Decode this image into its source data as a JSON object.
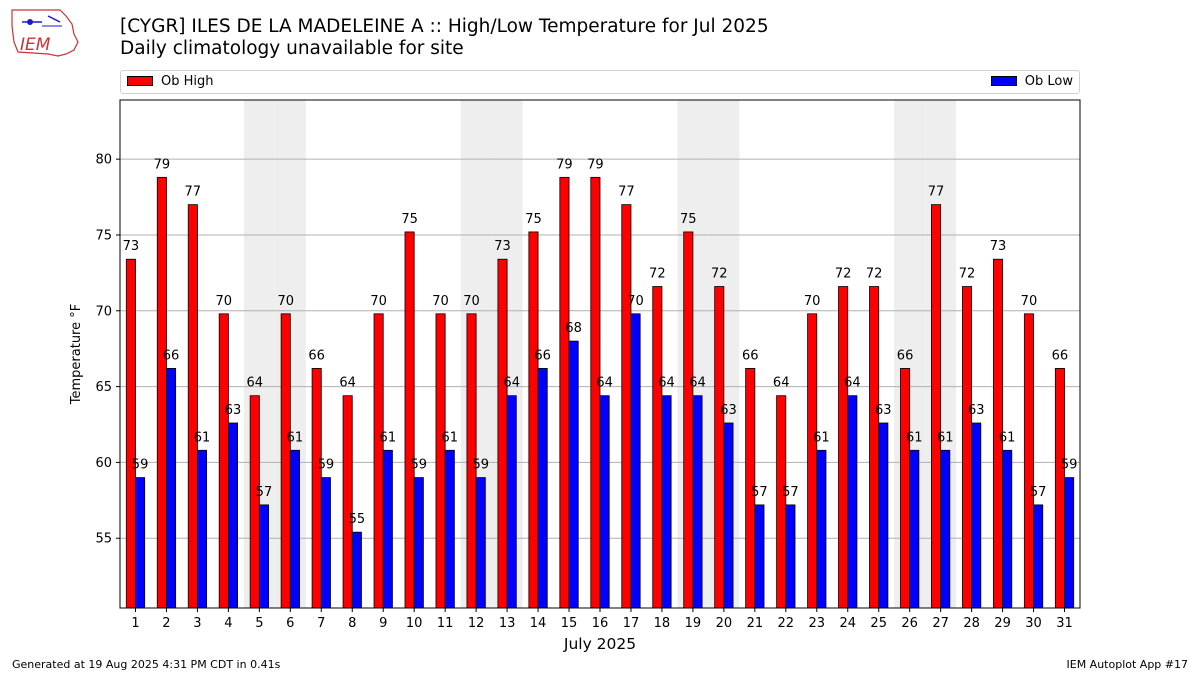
{
  "header": {
    "title": "[CYGR] ILES DE LA MADELEINE A :: High/Low Temperature for Jul 2025",
    "subtitle": "Daily climatology unavailable for site"
  },
  "logo": {
    "text": "IEM",
    "icon": "iem-logo-icon"
  },
  "footer": {
    "generated": "Generated at 19 Aug 2025 4:31 PM CDT in 0.41s",
    "app": "IEM Autoplot App #17"
  },
  "colors": {
    "high": "#ff0000",
    "low": "#0000ff",
    "weekend_band": "#eeeeee",
    "grid": "#b0b0b0"
  },
  "chart_data": {
    "type": "bar",
    "xlabel": "July 2025",
    "ylabel": "Temperature °F",
    "ylim": [
      50.4,
      83.9
    ],
    "yticks": [
      55,
      60,
      65,
      70,
      75,
      80
    ],
    "grid": true,
    "legend_placement": "top",
    "categories": [
      "1",
      "2",
      "3",
      "4",
      "5",
      "6",
      "7",
      "8",
      "9",
      "10",
      "11",
      "12",
      "13",
      "14",
      "15",
      "16",
      "17",
      "18",
      "19",
      "20",
      "21",
      "22",
      "23",
      "24",
      "25",
      "26",
      "27",
      "28",
      "29",
      "30",
      "31"
    ],
    "shaded_days": [
      5,
      6,
      12,
      13,
      19,
      20,
      26,
      27
    ],
    "series": [
      {
        "name": "Ob High",
        "values": [
          73.4,
          78.8,
          77.0,
          69.8,
          64.4,
          69.8,
          66.2,
          64.4,
          69.8,
          75.2,
          69.8,
          69.8,
          73.4,
          75.2,
          78.8,
          78.8,
          77.0,
          71.6,
          75.2,
          71.6,
          66.2,
          64.4,
          69.8,
          71.6,
          71.6,
          66.2,
          77.0,
          71.6,
          73.4,
          69.8,
          66.2
        ],
        "labels": [
          "73",
          "79",
          "77",
          "70",
          "64",
          "70",
          "66",
          "64",
          "70",
          "75",
          "70",
          "70",
          "73",
          "75",
          "79",
          "79",
          "77",
          "72",
          "75",
          "72",
          "66",
          "64",
          "70",
          "72",
          "72",
          "66",
          "77",
          "72",
          "73",
          "70",
          "66"
        ]
      },
      {
        "name": "Ob Low",
        "values": [
          59.0,
          66.2,
          60.8,
          62.6,
          57.2,
          60.8,
          59.0,
          55.4,
          60.8,
          59.0,
          60.8,
          59.0,
          64.4,
          66.2,
          68.0,
          64.4,
          69.8,
          64.4,
          64.4,
          62.6,
          57.2,
          57.2,
          60.8,
          64.4,
          62.6,
          60.8,
          60.8,
          62.6,
          60.8,
          57.2,
          59.0
        ],
        "labels": [
          "59",
          "66",
          "61",
          "63",
          "57",
          "61",
          "59",
          "55",
          "61",
          "59",
          "61",
          "59",
          "64",
          "66",
          "68",
          "64",
          "70",
          "64",
          "64",
          "63",
          "57",
          "57",
          "61",
          "64",
          "63",
          "61",
          "61",
          "63",
          "61",
          "57",
          "59"
        ]
      }
    ]
  }
}
